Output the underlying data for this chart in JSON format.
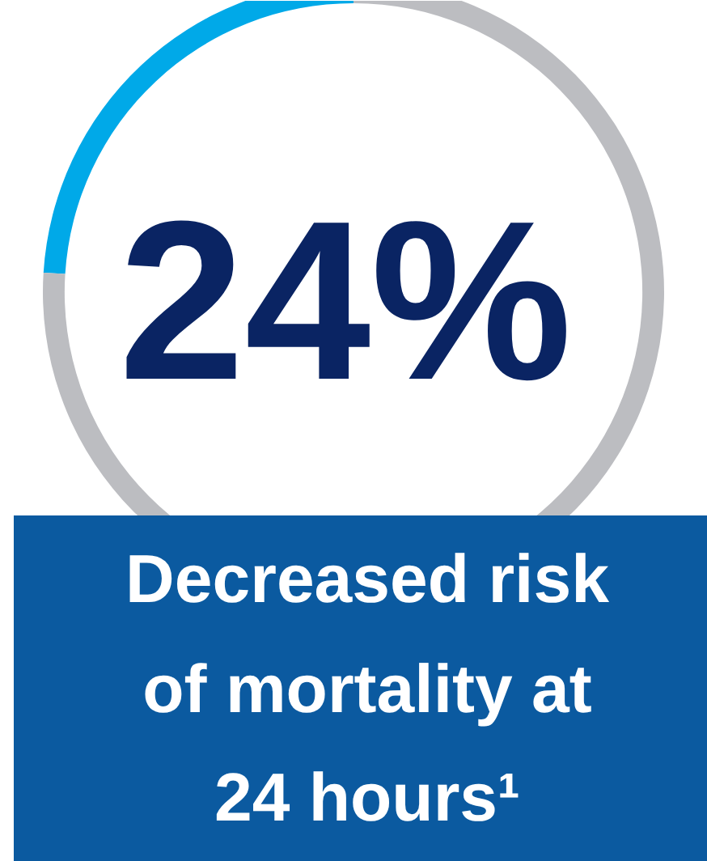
{
  "chart_data": {
    "type": "donut",
    "categories": [
      null,
      null
    ],
    "values": [
      24,
      76
    ],
    "colors": [
      "#00a9e8",
      "#bcbdc1"
    ],
    "annotations": [
      "24%"
    ],
    "title": "Decreased risk of mortality at 24 hours¹"
  }
}
